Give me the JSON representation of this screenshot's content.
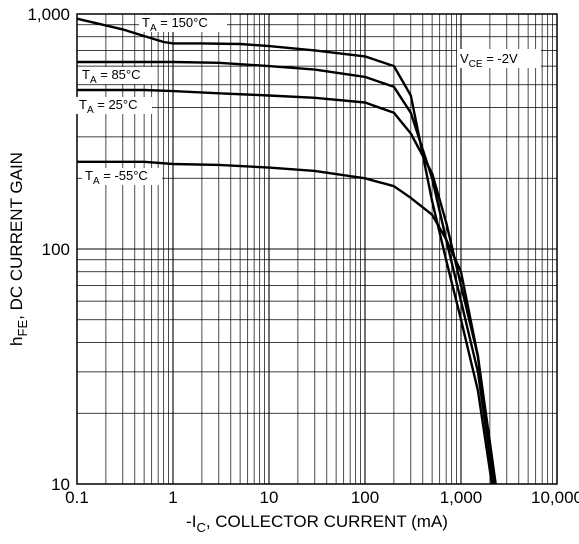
{
  "chart_data": {
    "type": "line",
    "x_scale": "log",
    "y_scale": "log",
    "xlim": [
      0.1,
      10000
    ],
    "ylim": [
      10,
      1000
    ],
    "grid": true,
    "legend": "none",
    "xlabel": {
      "prefix": "-I",
      "sub": "C",
      "suffix": ", COLLECTOR CURRENT (mA)"
    },
    "ylabel": {
      "prefix": "h",
      "sub": "FE",
      "suffix": ",  DC CURRENT GAIN"
    },
    "x_ticks": [
      {
        "value": 0.1,
        "label": "0.1"
      },
      {
        "value": 1,
        "label": "1"
      },
      {
        "value": 10,
        "label": "10"
      },
      {
        "value": 100,
        "label": "100"
      },
      {
        "value": 1000,
        "label": "1,000"
      },
      {
        "value": 10000,
        "label": "10,000"
      }
    ],
    "y_ticks": [
      {
        "value": 10,
        "label": "10"
      },
      {
        "value": 100,
        "label": "100"
      },
      {
        "value": 1000,
        "label": "1,000"
      }
    ],
    "condition": {
      "prefix": "V",
      "sub": "CE",
      "suffix": " = -2V"
    },
    "series": [
      {
        "name": "T_A = 150°C",
        "label": {
          "prefix": "T",
          "sub": "A",
          "suffix": " = 150°C"
        },
        "x": [
          0.1,
          0.3,
          0.8,
          1,
          2,
          5,
          10,
          30,
          100,
          200,
          300,
          500,
          700,
          1000,
          1500,
          2100
        ],
        "y": [
          955,
          860,
          760,
          750,
          750,
          745,
          730,
          700,
          660,
          600,
          450,
          160,
          90,
          50,
          25,
          10
        ]
      },
      {
        "name": "T_A = 85°C",
        "label": {
          "prefix": "T",
          "sub": "A",
          "suffix": " = 85°C"
        },
        "x": [
          0.1,
          0.5,
          1,
          3,
          10,
          30,
          100,
          200,
          300,
          500,
          700,
          1000,
          1500,
          2200
        ],
        "y": [
          625,
          625,
          625,
          620,
          600,
          580,
          540,
          490,
          380,
          200,
          110,
          60,
          30,
          10
        ]
      },
      {
        "name": "T_A = 25°C",
        "label": {
          "prefix": "T",
          "sub": "A",
          "suffix": " = 25°C"
        },
        "x": [
          0.1,
          0.5,
          1,
          3,
          10,
          30,
          100,
          200,
          300,
          500,
          700,
          1000,
          1500,
          2200
        ],
        "y": [
          475,
          475,
          470,
          460,
          450,
          440,
          420,
          380,
          310,
          210,
          130,
          70,
          35,
          10
        ]
      },
      {
        "name": "T_A = -55°C",
        "label": {
          "prefix": "T",
          "sub": "A",
          "suffix": " = -55°C"
        },
        "x": [
          0.1,
          0.5,
          1,
          3,
          10,
          30,
          100,
          200,
          300,
          500,
          700,
          1000,
          1500,
          2300
        ],
        "y": [
          235,
          235,
          230,
          228,
          222,
          215,
          200,
          185,
          165,
          140,
          110,
          80,
          35,
          10
        ]
      }
    ]
  }
}
